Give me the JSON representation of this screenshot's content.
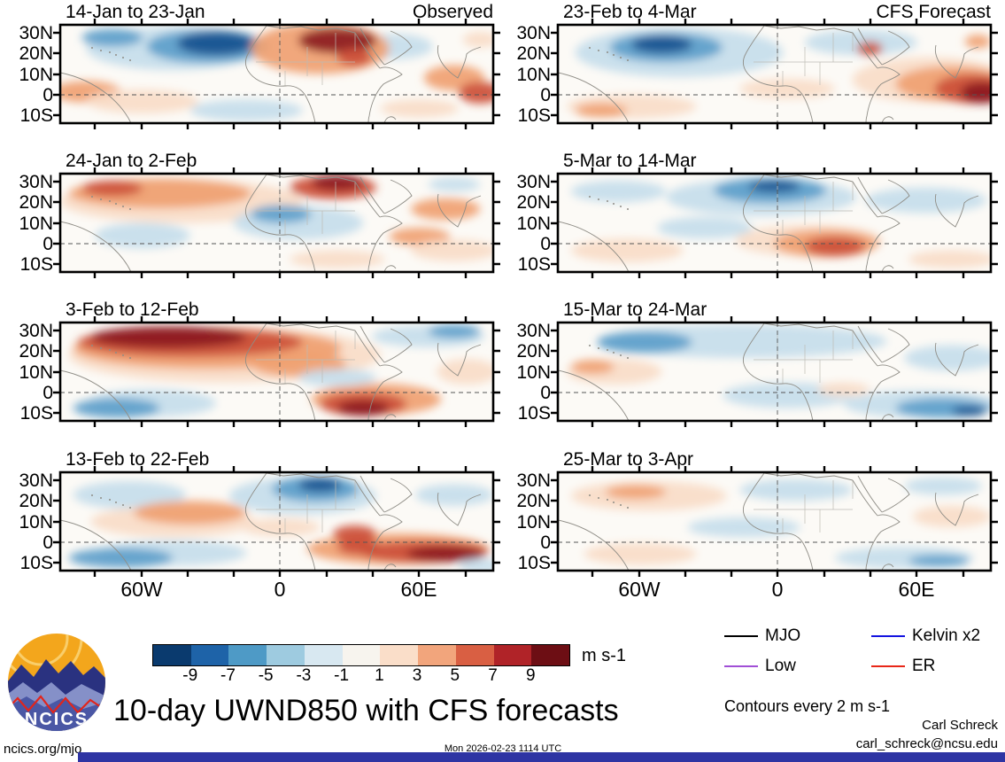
{
  "page": {
    "logo_text": "NCICS",
    "footer": {
      "site": "ncics.org/mjo",
      "timestamp": "Mon 2026-02-23 1114 UTC",
      "credit_name": "Carl Schreck",
      "credit_email": "carl_schreck@ncsu.edu"
    }
  },
  "chart_data": {
    "type": "heatmap",
    "title": "10-day UWND850 with CFS forecasts",
    "subtitle_note": "Contours every 2 m s-1",
    "variable": "UWND850",
    "units_label": "m s-1",
    "column_headings": [
      "Observed",
      "CFS Forecast"
    ],
    "axes": {
      "lat_ticks": [
        "30N",
        "20N",
        "10N",
        "0",
        "10S"
      ],
      "lon_ticks": [
        "60W",
        "0",
        "60E"
      ],
      "lat_range": [
        "34N",
        "14S"
      ],
      "lon_range": [
        "95W",
        "92E"
      ]
    },
    "colorbar": {
      "tick_labels": [
        "-9",
        "-7",
        "-5",
        "-3",
        "-1",
        "1",
        "3",
        "5",
        "7",
        "9"
      ],
      "colors": [
        "#0a3a6e",
        "#1e63a8",
        "#4e9ac6",
        "#9ecbe0",
        "#d8e8f1",
        "#f7f4ee",
        "#fadec9",
        "#f2a57c",
        "#d95f43",
        "#b02328",
        "#6d0e14"
      ],
      "units": "m s-1"
    },
    "legend": [
      {
        "label": "MJO",
        "color": "#000000"
      },
      {
        "label": "Kelvin x2",
        "color": "#1414e0"
      },
      {
        "label": "Low",
        "color": "#a14fd6"
      },
      {
        "label": "ER",
        "color": "#e82718"
      }
    ],
    "palette": {
      "b3": "#15518f",
      "b2": "#5e9fcb",
      "b1": "#c5ddec",
      "r1": "#f8dcc8",
      "r2": "#f0a171",
      "r3": "#cc4f38",
      "r4": "#8c1a20"
    },
    "panels": [
      {
        "title": "14-Jan to 23-Jan",
        "corner_label": "Observed",
        "group": "Observed",
        "anomalies": [
          [
            26,
            24,
            20,
            22,
            "b1"
          ],
          [
            34,
            22,
            14,
            17,
            "b2"
          ],
          [
            36,
            19,
            9,
            12,
            "b3"
          ],
          [
            12,
            13,
            7,
            9,
            "b2"
          ],
          [
            77,
            22,
            9,
            13,
            "b1"
          ],
          [
            60,
            24,
            16,
            26,
            "r2"
          ],
          [
            64,
            16,
            9,
            13,
            "r4"
          ],
          [
            68,
            33,
            4,
            9,
            "r3"
          ],
          [
            6,
            68,
            8,
            11,
            "r2"
          ],
          [
            19,
            78,
            13,
            12,
            "r1"
          ],
          [
            43,
            87,
            13,
            11,
            "b1"
          ],
          [
            83,
            85,
            9,
            9,
            "r1"
          ],
          [
            91,
            54,
            7,
            13,
            "r2"
          ],
          [
            97,
            69,
            5,
            11,
            "r3"
          ],
          [
            97,
            15,
            4,
            8,
            "r1"
          ]
        ]
      },
      {
        "title": "24-Jan to 2-Feb",
        "corner_label": "",
        "group": "Observed",
        "anomalies": [
          [
            28,
            28,
            28,
            22,
            "r1"
          ],
          [
            23,
            20,
            21,
            15,
            "r2"
          ],
          [
            12,
            15,
            7,
            8,
            "r3"
          ],
          [
            63,
            14,
            10,
            12,
            "r3"
          ],
          [
            64,
            9,
            6,
            8,
            "r4"
          ],
          [
            55,
            50,
            15,
            17,
            "b1"
          ],
          [
            51,
            41,
            7,
            9,
            "b2"
          ],
          [
            19,
            63,
            11,
            13,
            "b1"
          ],
          [
            89,
            36,
            8,
            11,
            "r2"
          ],
          [
            83,
            64,
            7,
            9,
            "r2"
          ],
          [
            91,
            78,
            10,
            11,
            "r1"
          ],
          [
            64,
            87,
            11,
            9,
            "r1"
          ],
          [
            91,
            11,
            6,
            7,
            "b1"
          ]
        ]
      },
      {
        "title": "3-Feb to 12-Feb",
        "corner_label": "",
        "group": "Observed",
        "anomalies": [
          [
            38,
            33,
            36,
            28,
            "r1"
          ],
          [
            34,
            26,
            31,
            21,
            "r2"
          ],
          [
            30,
            20,
            26,
            15,
            "r3"
          ],
          [
            25,
            15,
            18,
            11,
            "r4"
          ],
          [
            55,
            42,
            11,
            13,
            "r2"
          ],
          [
            21,
            82,
            15,
            14,
            "b1"
          ],
          [
            13,
            87,
            10,
            10,
            "b2"
          ],
          [
            85,
            14,
            13,
            11,
            "b1"
          ],
          [
            91,
            9,
            6,
            7,
            "b2"
          ],
          [
            73,
            78,
            15,
            16,
            "r2"
          ],
          [
            70,
            83,
            10,
            12,
            "r3"
          ],
          [
            70,
            87,
            6,
            8,
            "r4"
          ],
          [
            94,
            50,
            7,
            13,
            "r1"
          ],
          [
            64,
            56,
            9,
            9,
            "b1"
          ]
        ]
      },
      {
        "title": "13-Feb to 22-Feb",
        "corner_label": "",
        "group": "Observed",
        "anomalies": [
          [
            56,
            24,
            17,
            19,
            "b1"
          ],
          [
            59,
            17,
            10,
            13,
            "b2"
          ],
          [
            60,
            13,
            5,
            7,
            "b3"
          ],
          [
            16,
            23,
            13,
            14,
            "b1"
          ],
          [
            26,
            50,
            19,
            16,
            "r1"
          ],
          [
            30,
            41,
            13,
            12,
            "r2"
          ],
          [
            26,
            82,
            17,
            13,
            "b1"
          ],
          [
            14,
            87,
            12,
            10,
            "b2"
          ],
          [
            78,
            78,
            21,
            16,
            "r2"
          ],
          [
            84,
            81,
            15,
            11,
            "r3"
          ],
          [
            89,
            83,
            9,
            8,
            "r4"
          ],
          [
            69,
            76,
            5,
            8,
            "r3"
          ],
          [
            68,
            63,
            5,
            9,
            "r3"
          ],
          [
            97,
            95,
            5,
            7,
            "b1"
          ],
          [
            91,
            23,
            9,
            11,
            "b1"
          ],
          [
            51,
            56,
            9,
            9,
            "r1"
          ]
        ]
      },
      {
        "title": "23-Feb to 4-Mar",
        "corner_label": "CFS Forecast",
        "group": "CFS Forecast",
        "anomalies": [
          [
            28,
            28,
            24,
            25,
            "b1"
          ],
          [
            25,
            23,
            13,
            15,
            "b2"
          ],
          [
            24,
            20,
            7,
            9,
            "b3"
          ],
          [
            70,
            18,
            13,
            13,
            "b1"
          ],
          [
            72,
            24,
            3,
            7,
            "r3"
          ],
          [
            86,
            56,
            18,
            23,
            "r1"
          ],
          [
            91,
            60,
            13,
            18,
            "r2"
          ],
          [
            96,
            65,
            9,
            15,
            "r3"
          ],
          [
            98,
            69,
            5,
            11,
            "r4"
          ],
          [
            17,
            83,
            15,
            12,
            "r1"
          ],
          [
            10,
            87,
            6,
            7,
            "r2"
          ],
          [
            53,
            65,
            11,
            10,
            "r1"
          ],
          [
            97,
            17,
            3,
            7,
            "r2"
          ]
        ]
      },
      {
        "title": "5-Mar to 14-Mar",
        "corner_label": "",
        "group": "CFS Forecast",
        "anomalies": [
          [
            47,
            24,
            22,
            19,
            "b1"
          ],
          [
            49,
            17,
            13,
            13,
            "b2"
          ],
          [
            50,
            13,
            6,
            6,
            "b3"
          ],
          [
            14,
            18,
            11,
            11,
            "b1"
          ],
          [
            85,
            27,
            14,
            13,
            "b1"
          ],
          [
            58,
            68,
            17,
            16,
            "r1"
          ],
          [
            62,
            71,
            12,
            14,
            "r2"
          ],
          [
            64,
            74,
            7,
            10,
            "r3"
          ],
          [
            16,
            78,
            13,
            12,
            "r1"
          ],
          [
            91,
            87,
            10,
            9,
            "r1"
          ],
          [
            34,
            55,
            11,
            11,
            "b1"
          ]
        ]
      },
      {
        "title": "15-Mar to 24-Mar",
        "corner_label": "",
        "group": "CFS Forecast",
        "anomalies": [
          [
            43,
            19,
            33,
            17,
            "b1"
          ],
          [
            20,
            20,
            11,
            11,
            "b2"
          ],
          [
            13,
            50,
            11,
            13,
            "r1"
          ],
          [
            8,
            45,
            5,
            7,
            "r2"
          ],
          [
            53,
            74,
            15,
            13,
            "b1"
          ],
          [
            84,
            83,
            18,
            14,
            "b1"
          ],
          [
            89,
            87,
            11,
            10,
            "b2"
          ],
          [
            95,
            90,
            4,
            5,
            "b3"
          ],
          [
            66,
            68,
            6,
            7,
            "r1"
          ],
          [
            91,
            36,
            11,
            13,
            "b1"
          ]
        ]
      },
      {
        "title": "25-Mar to 3-Apr",
        "corner_label": "",
        "group": "CFS Forecast",
        "anomalies": [
          [
            21,
            24,
            18,
            15,
            "r1"
          ],
          [
            18,
            20,
            7,
            7,
            "r2"
          ],
          [
            55,
            18,
            13,
            11,
            "b1"
          ],
          [
            89,
            14,
            9,
            9,
            "b1"
          ],
          [
            91,
            45,
            9,
            11,
            "r1"
          ],
          [
            80,
            87,
            16,
            11,
            "b1"
          ],
          [
            88,
            90,
            7,
            6,
            "b2"
          ],
          [
            19,
            83,
            13,
            11,
            "r1"
          ],
          [
            43,
            56,
            13,
            10,
            "b1"
          ]
        ]
      }
    ]
  }
}
